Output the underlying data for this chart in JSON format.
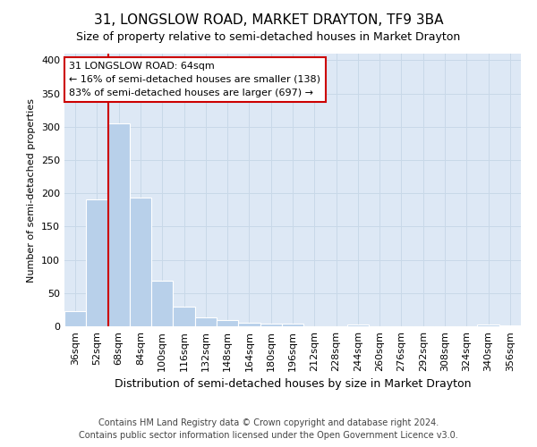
{
  "title": "31, LONGSLOW ROAD, MARKET DRAYTON, TF9 3BA",
  "subtitle": "Size of property relative to semi-detached houses in Market Drayton",
  "xlabel": "Distribution of semi-detached houses by size in Market Drayton",
  "ylabel": "Number of semi-detached properties",
  "footer_line1": "Contains HM Land Registry data © Crown copyright and database right 2024.",
  "footer_line2": "Contains public sector information licensed under the Open Government Licence v3.0.",
  "categories": [
    "36sqm",
    "52sqm",
    "68sqm",
    "84sqm",
    "100sqm",
    "116sqm",
    "132sqm",
    "148sqm",
    "164sqm",
    "180sqm",
    "196sqm",
    "212sqm",
    "228sqm",
    "244sqm",
    "260sqm",
    "276sqm",
    "292sqm",
    "308sqm",
    "324sqm",
    "340sqm",
    "356sqm"
  ],
  "values": [
    23,
    191,
    305,
    193,
    68,
    30,
    14,
    10,
    5,
    4,
    4,
    0,
    0,
    3,
    0,
    0,
    0,
    0,
    0,
    3,
    2
  ],
  "bar_color": "#b8d0ea",
  "bar_edge_color": "#ffffff",
  "grid_color": "#c8d8e8",
  "background_color": "#dde8f5",
  "vline_color": "#cc0000",
  "vline_x_index": 2,
  "annotation_text_line1": "31 LONGSLOW ROAD: 64sqm",
  "annotation_text_line2": "← 16% of semi-detached houses are smaller (138)",
  "annotation_text_line3": "83% of semi-detached houses are larger (697) →",
  "annotation_box_facecolor": "white",
  "annotation_box_edgecolor": "#cc0000",
  "ylim": [
    0,
    410
  ],
  "yticks": [
    0,
    50,
    100,
    150,
    200,
    250,
    300,
    350,
    400
  ],
  "title_fontsize": 11,
  "subtitle_fontsize": 9,
  "xlabel_fontsize": 9,
  "ylabel_fontsize": 8,
  "tick_fontsize": 8,
  "footer_fontsize": 7
}
